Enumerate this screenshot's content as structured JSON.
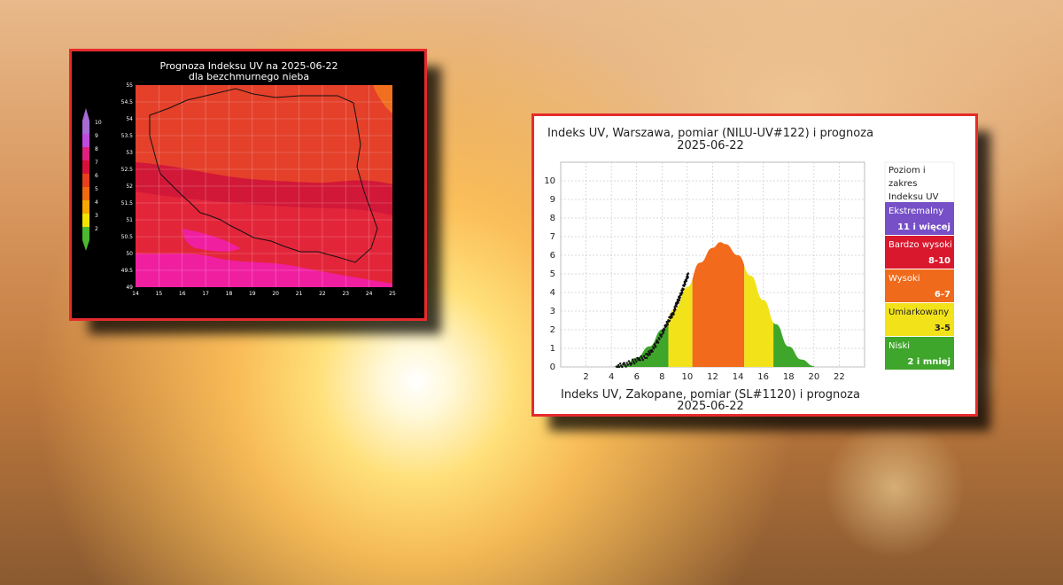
{
  "map": {
    "title_line1": "Prognoza Indeksu UV na 2025-06-22",
    "title_line2": "dla bezchmurnego nieba",
    "colorbar": {
      "labels": [
        "10",
        "9",
        "8",
        "7",
        "6",
        "5",
        "4",
        "3",
        "2"
      ],
      "colors": [
        "#a66bd6",
        "#c04ae0",
        "#e02080",
        "#d80f3a",
        "#e8401c",
        "#f06a10",
        "#f7a800",
        "#f3e400",
        "#4cb830"
      ]
    },
    "x_ticks": [
      "14",
      "15",
      "16",
      "17",
      "18",
      "19",
      "20",
      "21",
      "22",
      "23",
      "24",
      "25"
    ],
    "y_ticks": [
      "55",
      "54.5",
      "54",
      "53.5",
      "53",
      "52.5",
      "52",
      "51.5",
      "51",
      "50.5",
      "50",
      "49.5",
      "49"
    ],
    "zone_colors": {
      "zone_8": "#e3253a",
      "zone_7": "#d21838",
      "zone_6_7": "#e8401c",
      "zone_9": "#f01fa0",
      "zone_orange": "#f07020"
    }
  },
  "chart_data": {
    "type": "area",
    "title": "Indeks UV, Warszawa, pomiar (NILU-UV#122) i prognoza",
    "subtitle": "2025-06-22",
    "bottom_title": "Indeks UV, Zakopane, pomiar (SL#1120) i prognoza",
    "bottom_subtitle": "2025-06-22",
    "x_ticks": [
      "2",
      "4",
      "6",
      "8",
      "10",
      "12",
      "14",
      "16",
      "18",
      "20",
      "22"
    ],
    "y_ticks": [
      "0",
      "1",
      "2",
      "3",
      "4",
      "5",
      "6",
      "7",
      "8",
      "9",
      "10"
    ],
    "xlim": [
      0,
      24
    ],
    "ylim": [
      0,
      11
    ],
    "forecast_series": {
      "x": [
        4,
        5,
        6,
        7,
        8,
        9,
        10,
        11,
        12,
        12.6,
        13,
        14,
        15,
        16,
        17,
        18,
        19,
        20
      ],
      "y": [
        0.0,
        0.1,
        0.5,
        1.1,
        2.0,
        3.1,
        4.3,
        5.6,
        6.4,
        6.7,
        6.6,
        6.0,
        4.9,
        3.6,
        2.3,
        1.1,
        0.4,
        0.05
      ]
    },
    "measurement_series": {
      "x": [
        4.4,
        5.0,
        5.6,
        6.2,
        6.8,
        7.2,
        7.6,
        8.0,
        8.3,
        8.6,
        8.9,
        9.1,
        9.3,
        9.5,
        9.7,
        9.9,
        10.1
      ],
      "y": [
        0.02,
        0.1,
        0.25,
        0.4,
        0.6,
        0.9,
        1.3,
        1.8,
        2.2,
        2.6,
        2.9,
        3.3,
        3.6,
        3.9,
        4.3,
        4.7,
        5.0
      ]
    },
    "bands": [
      {
        "from": 8.5,
        "to": 10.4,
        "color": "#f2e21a"
      },
      {
        "from": 10.4,
        "to": 14.5,
        "color": "#f26a1b"
      },
      {
        "from": 14.5,
        "to": 16.8,
        "color": "#f2e21a"
      },
      {
        "from": 0,
        "to": 8.5,
        "color": "#3ea62a"
      },
      {
        "from": 16.8,
        "to": 24,
        "color": "#3ea62a"
      }
    ],
    "grid": true,
    "legend": {
      "placement": "right",
      "header": [
        "Poziom i",
        "zakres",
        "Indeksu UV"
      ],
      "items": [
        {
          "name": "Ekstremalny",
          "range": "11  i więcej",
          "color": "#7750c8"
        },
        {
          "name": "Bardzo wysoki",
          "range": "8-10",
          "color": "#d9182d"
        },
        {
          "name": "Wysoki",
          "range": "6-7",
          "color": "#f06a1b"
        },
        {
          "name": "Umiarkowany",
          "range": "3-5",
          "color": "#f2e21a"
        },
        {
          "name": "Niski",
          "range": "2  i mniej",
          "color": "#3ea62a"
        }
      ]
    }
  }
}
